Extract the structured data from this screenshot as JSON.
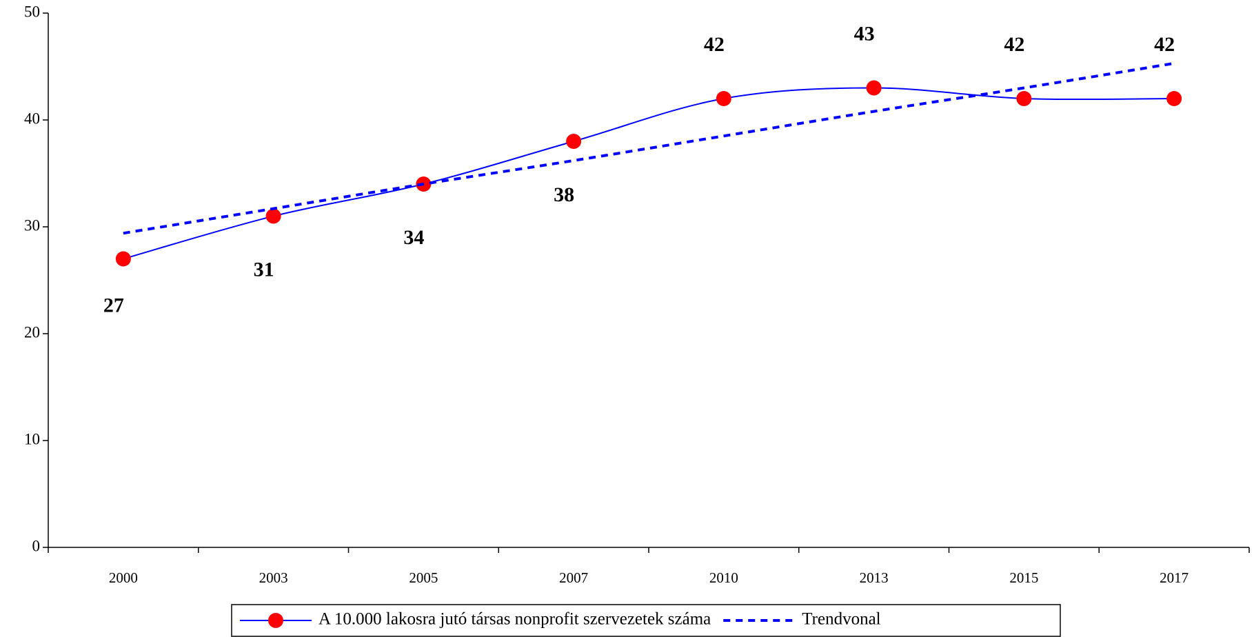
{
  "chart_data": {
    "type": "line",
    "categories": [
      "2000",
      "2003",
      "2005",
      "2007",
      "2010",
      "2013",
      "2015",
      "2017"
    ],
    "series": [
      {
        "name": "A 10.000 lakosra jutó társas nonprofit szervezetek száma",
        "color": "#0000ff",
        "marker_color": "#ff0000",
        "values": [
          27,
          31,
          34,
          38,
          42,
          43,
          42,
          42
        ]
      },
      {
        "name": "Trendvonal",
        "color": "#0000ff",
        "dashed": true,
        "values": [
          29.4,
          31.7,
          34.0,
          36.2,
          38.5,
          40.8,
          43.0,
          45.3
        ]
      }
    ],
    "ylim": [
      0,
      50
    ],
    "yticks": [
      0,
      10,
      20,
      30,
      40,
      50
    ],
    "grid": false,
    "legend": "bottom"
  }
}
